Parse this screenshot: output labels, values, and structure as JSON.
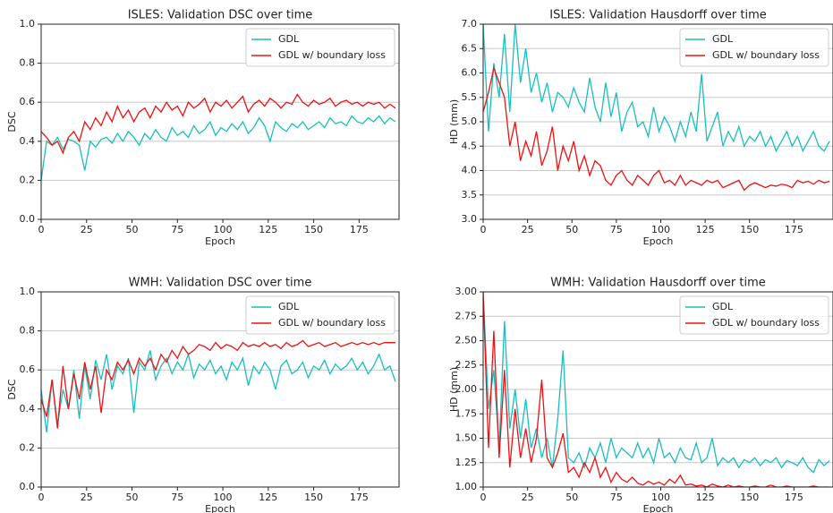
{
  "chart_data": [
    {
      "type": "line",
      "title": "ISLES: Validation DSC over time",
      "xlabel": "Epoch",
      "ylabel": "DSC",
      "x": [
        0,
        3,
        6,
        9,
        12,
        15,
        18,
        21,
        24,
        27,
        30,
        33,
        36,
        39,
        42,
        45,
        48,
        51,
        54,
        57,
        60,
        63,
        66,
        69,
        72,
        75,
        78,
        81,
        84,
        87,
        90,
        93,
        96,
        99,
        102,
        105,
        108,
        111,
        114,
        117,
        120,
        123,
        126,
        129,
        132,
        135,
        138,
        141,
        144,
        147,
        150,
        153,
        156,
        159,
        162,
        165,
        168,
        171,
        174,
        177,
        180,
        183,
        186,
        189,
        192,
        195
      ],
      "xlim": [
        0,
        197
      ],
      "xticks": [
        0,
        25,
        50,
        75,
        100,
        125,
        150,
        175
      ],
      "ylim": [
        0,
        1
      ],
      "yticks": [
        {
          "value": 0,
          "label": "0.0"
        },
        0.2,
        0.4,
        0.6,
        0.8,
        {
          "value": 1,
          "label": "1.0"
        }
      ],
      "grid": true,
      "legend": "upper right",
      "series": [
        {
          "name": "GDL",
          "color": "#17bfbf",
          "values": [
            0.2,
            0.4,
            0.38,
            0.42,
            0.36,
            0.41,
            0.4,
            0.38,
            0.25,
            0.4,
            0.37,
            0.41,
            0.42,
            0.39,
            0.44,
            0.4,
            0.45,
            0.42,
            0.38,
            0.44,
            0.41,
            0.46,
            0.42,
            0.4,
            0.47,
            0.43,
            0.45,
            0.42,
            0.48,
            0.44,
            0.46,
            0.5,
            0.43,
            0.47,
            0.45,
            0.49,
            0.46,
            0.5,
            0.44,
            0.47,
            0.52,
            0.48,
            0.4,
            0.5,
            0.47,
            0.45,
            0.49,
            0.47,
            0.5,
            0.46,
            0.48,
            0.5,
            0.47,
            0.52,
            0.49,
            0.5,
            0.48,
            0.53,
            0.5,
            0.49,
            0.52,
            0.5,
            0.53,
            0.49,
            0.52,
            0.5
          ]
        },
        {
          "name": "GDL w/ boundary loss",
          "color": "#ee1111",
          "values": [
            0.45,
            0.42,
            0.38,
            0.4,
            0.34,
            0.42,
            0.45,
            0.4,
            0.5,
            0.46,
            0.52,
            0.48,
            0.55,
            0.5,
            0.58,
            0.52,
            0.56,
            0.5,
            0.55,
            0.57,
            0.52,
            0.58,
            0.55,
            0.6,
            0.56,
            0.58,
            0.53,
            0.6,
            0.57,
            0.59,
            0.62,
            0.55,
            0.6,
            0.58,
            0.61,
            0.57,
            0.6,
            0.63,
            0.55,
            0.59,
            0.61,
            0.58,
            0.62,
            0.6,
            0.57,
            0.6,
            0.59,
            0.64,
            0.6,
            0.58,
            0.61,
            0.59,
            0.6,
            0.62,
            0.58,
            0.6,
            0.61,
            0.59,
            0.6,
            0.58,
            0.6,
            0.59,
            0.6,
            0.57,
            0.59,
            0.57
          ]
        }
      ]
    },
    {
      "type": "line",
      "title": "ISLES: Validation Hausdorff over time",
      "xlabel": "Epoch",
      "ylabel": "HD (mm)",
      "x": [
        0,
        3,
        6,
        9,
        12,
        15,
        18,
        21,
        24,
        27,
        30,
        33,
        36,
        39,
        42,
        45,
        48,
        51,
        54,
        57,
        60,
        63,
        66,
        69,
        72,
        75,
        78,
        81,
        84,
        87,
        90,
        93,
        96,
        99,
        102,
        105,
        108,
        111,
        114,
        117,
        120,
        123,
        126,
        129,
        132,
        135,
        138,
        141,
        144,
        147,
        150,
        153,
        156,
        159,
        162,
        165,
        168,
        171,
        174,
        177,
        180,
        183,
        186,
        189,
        192,
        195
      ],
      "xlim": [
        0,
        197
      ],
      "xticks": [
        0,
        25,
        50,
        75,
        100,
        125,
        150,
        175
      ],
      "ylim": [
        3,
        7
      ],
      "yticks": [
        {
          "value": 3,
          "label": "3.0"
        },
        3.5,
        {
          "value": 4,
          "label": "4.0"
        },
        4.5,
        {
          "value": 5,
          "label": "5.0"
        },
        5.5,
        {
          "value": 6,
          "label": "6.0"
        },
        6.5,
        {
          "value": 7,
          "label": "7.0"
        }
      ],
      "grid": true,
      "legend": "upper right",
      "series": [
        {
          "name": "GDL",
          "color": "#17bfbf",
          "values": [
            7,
            4.8,
            6.2,
            5.5,
            6.8,
            5.2,
            7,
            5.8,
            6.5,
            5.6,
            6,
            5.4,
            5.8,
            5.2,
            5.6,
            5.5,
            5.3,
            5.7,
            5.4,
            5.2,
            5.9,
            5.3,
            5,
            5.8,
            5.1,
            5.6,
            4.8,
            5.2,
            5.4,
            4.9,
            5,
            4.7,
            5.3,
            4.8,
            5.1,
            4.9,
            4.6,
            5,
            4.7,
            5.2,
            4.8,
            5.98,
            4.6,
            4.9,
            5.2,
            4.5,
            4.8,
            4.6,
            4.9,
            4.5,
            4.7,
            4.6,
            4.8,
            4.5,
            4.7,
            4.4,
            4.6,
            4.8,
            4.5,
            4.7,
            4.4,
            4.6,
            4.8,
            4.5,
            4.4,
            4.6
          ]
        },
        {
          "name": "GDL w/ boundary loss",
          "color": "#ee1111",
          "values": [
            5.2,
            5.6,
            6.1,
            5.8,
            5.5,
            4.5,
            5,
            4.2,
            4.6,
            4.3,
            4.8,
            4.1,
            4.4,
            4.9,
            4,
            4.5,
            4.2,
            4.6,
            4,
            4.3,
            3.9,
            4.2,
            4.1,
            3.8,
            3.7,
            3.9,
            4,
            3.8,
            3.7,
            3.9,
            3.8,
            3.7,
            3.9,
            4,
            3.75,
            3.8,
            3.7,
            3.9,
            3.7,
            3.8,
            3.75,
            3.7,
            3.8,
            3.75,
            3.8,
            3.65,
            3.7,
            3.75,
            3.8,
            3.6,
            3.7,
            3.75,
            3.7,
            3.65,
            3.7,
            3.68,
            3.72,
            3.7,
            3.65,
            3.8,
            3.75,
            3.78,
            3.72,
            3.8,
            3.75,
            3.78
          ]
        }
      ]
    },
    {
      "type": "line",
      "title": "WMH: Validation DSC over time",
      "xlabel": "Epoch",
      "ylabel": "DSC",
      "x": [
        0,
        3,
        6,
        9,
        12,
        15,
        18,
        21,
        24,
        27,
        30,
        33,
        36,
        39,
        42,
        45,
        48,
        51,
        54,
        57,
        60,
        63,
        66,
        69,
        72,
        75,
        78,
        81,
        84,
        87,
        90,
        93,
        96,
        99,
        102,
        105,
        108,
        111,
        114,
        117,
        120,
        123,
        126,
        129,
        132,
        135,
        138,
        141,
        144,
        147,
        150,
        153,
        156,
        159,
        162,
        165,
        168,
        171,
        174,
        177,
        180,
        183,
        186,
        189,
        192,
        195
      ],
      "xlim": [
        0,
        197
      ],
      "xticks": [
        0,
        25,
        50,
        75,
        100,
        125,
        150,
        175
      ],
      "ylim": [
        0,
        1
      ],
      "yticks": [
        {
          "value": 0,
          "label": "0.0"
        },
        0.2,
        0.4,
        0.6,
        0.8,
        {
          "value": 1,
          "label": "1.0"
        }
      ],
      "grid": true,
      "legend": "upper right",
      "series": [
        {
          "name": "GDL",
          "color": "#17bfbf",
          "values": [
            0.5,
            0.28,
            0.55,
            0.32,
            0.5,
            0.4,
            0.6,
            0.35,
            0.62,
            0.45,
            0.65,
            0.55,
            0.68,
            0.5,
            0.62,
            0.58,
            0.66,
            0.38,
            0.64,
            0.6,
            0.7,
            0.55,
            0.62,
            0.66,
            0.58,
            0.64,
            0.6,
            0.68,
            0.56,
            0.63,
            0.6,
            0.65,
            0.58,
            0.62,
            0.55,
            0.64,
            0.6,
            0.66,
            0.52,
            0.62,
            0.58,
            0.64,
            0.6,
            0.5,
            0.62,
            0.65,
            0.58,
            0.6,
            0.64,
            0.56,
            0.62,
            0.6,
            0.65,
            0.58,
            0.63,
            0.6,
            0.62,
            0.66,
            0.6,
            0.64,
            0.58,
            0.62,
            0.68,
            0.6,
            0.62,
            0.54
          ]
        },
        {
          "name": "GDL w/ boundary loss",
          "color": "#ee1111",
          "values": [
            0.45,
            0.36,
            0.55,
            0.3,
            0.62,
            0.4,
            0.58,
            0.45,
            0.64,
            0.5,
            0.62,
            0.38,
            0.6,
            0.55,
            0.64,
            0.6,
            0.65,
            0.58,
            0.66,
            0.62,
            0.66,
            0.6,
            0.68,
            0.64,
            0.7,
            0.66,
            0.72,
            0.68,
            0.7,
            0.73,
            0.72,
            0.7,
            0.74,
            0.71,
            0.73,
            0.72,
            0.7,
            0.74,
            0.72,
            0.73,
            0.72,
            0.74,
            0.72,
            0.73,
            0.71,
            0.74,
            0.72,
            0.73,
            0.75,
            0.72,
            0.73,
            0.74,
            0.72,
            0.73,
            0.74,
            0.72,
            0.73,
            0.74,
            0.73,
            0.74,
            0.73,
            0.74,
            0.73,
            0.74,
            0.74,
            0.74
          ]
        }
      ]
    },
    {
      "type": "line",
      "title": "WMH: Validation Hausdorff over time",
      "xlabel": "Epoch",
      "ylabel": "HD (mm)",
      "x": [
        0,
        3,
        6,
        9,
        12,
        15,
        18,
        21,
        24,
        27,
        30,
        33,
        36,
        39,
        42,
        45,
        48,
        51,
        54,
        57,
        60,
        63,
        66,
        69,
        72,
        75,
        78,
        81,
        84,
        87,
        90,
        93,
        96,
        99,
        102,
        105,
        108,
        111,
        114,
        117,
        120,
        123,
        126,
        129,
        132,
        135,
        138,
        141,
        144,
        147,
        150,
        153,
        156,
        159,
        162,
        165,
        168,
        171,
        174,
        177,
        180,
        183,
        186,
        189,
        192,
        195
      ],
      "xlim": [
        0,
        197
      ],
      "xticks": [
        0,
        25,
        50,
        75,
        100,
        125,
        150,
        175
      ],
      "ylim": [
        1,
        3
      ],
      "yticks": [
        {
          "value": 1,
          "label": "1.00"
        },
        1.25,
        {
          "value": 1.5,
          "label": "1.50"
        },
        1.75,
        {
          "value": 2,
          "label": "2.00"
        },
        2.25,
        {
          "value": 2.5,
          "label": "2.50"
        },
        2.75,
        {
          "value": 3,
          "label": "3.00"
        }
      ],
      "grid": true,
      "legend": "upper right",
      "series": [
        {
          "name": "GDL",
          "color": "#17bfbf",
          "values": [
            3,
            1.8,
            2.2,
            1.4,
            2.7,
            1.6,
            2,
            1.5,
            1.9,
            1.4,
            1.6,
            1.3,
            1.5,
            1.2,
            1.7,
            2.4,
            1.3,
            1.25,
            1.35,
            1.2,
            1.4,
            1.3,
            1.45,
            1.25,
            1.5,
            1.3,
            1.4,
            1.35,
            1.3,
            1.45,
            1.3,
            1.4,
            1.25,
            1.5,
            1.3,
            1.35,
            1.25,
            1.4,
            1.3,
            1.28,
            1.45,
            1.25,
            1.3,
            1.5,
            1.22,
            1.3,
            1.25,
            1.3,
            1.2,
            1.28,
            1.25,
            1.3,
            1.22,
            1.28,
            1.25,
            1.3,
            1.2,
            1.27,
            1.25,
            1.22,
            1.3,
            1.2,
            1.15,
            1.28,
            1.22,
            1.27
          ]
        },
        {
          "name": "GDL w/ boundary loss",
          "color": "#ee1111",
          "values": [
            3,
            1.4,
            2.6,
            1.3,
            2.2,
            1.2,
            1.8,
            1.3,
            1.6,
            1.25,
            1.5,
            2.1,
            1.3,
            1.2,
            1.35,
            1.55,
            1.15,
            1.2,
            1.1,
            1.25,
            1.15,
            1.3,
            1.1,
            1.2,
            1.05,
            1.15,
            1.08,
            1.05,
            1.1,
            1.04,
            1.02,
            1.06,
            1.03,
            1.05,
            1.02,
            1.08,
            1.04,
            1.12,
            1.02,
            1.03,
            1.01,
            1.02,
            1.0,
            1.03,
            1.01,
            1.0,
            1.02,
            1.0,
            1.01,
            1.0,
            1.0,
            1.01,
            1.0,
            1.0,
            1.02,
            1.0,
            1.0,
            1.01,
            1.0,
            1.0,
            1.0,
            1.0,
            1.01,
            1.0,
            1.0,
            1.0
          ]
        }
      ]
    }
  ]
}
